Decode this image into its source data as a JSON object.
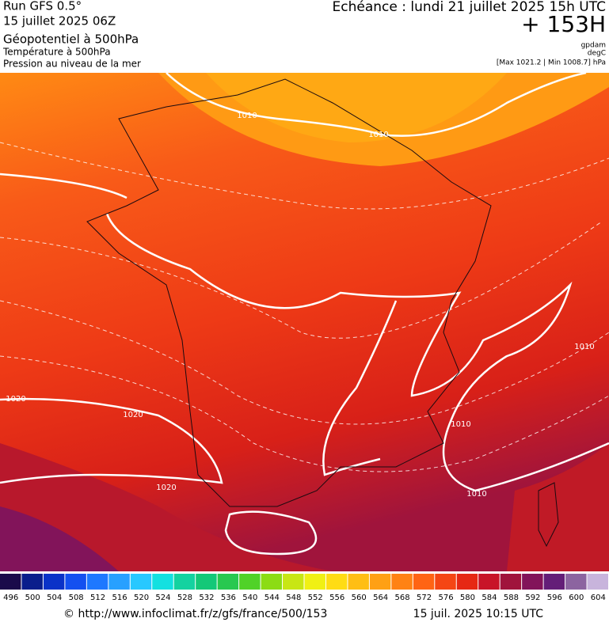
{
  "header": {
    "left": [
      "Run GFS 0.5°",
      "15 juillet 2025 06Z",
      "Géopotentiel à 500hPa",
      "Température à 500hPa",
      "Pression au niveau de la mer"
    ],
    "right": {
      "valid": "Echéance : lundi 21 juillet 2025 15h UTC",
      "lead": "+ 153H",
      "units": [
        "gpdam",
        "degC"
      ],
      "range": "[Max 1021.2 | Min 1008.7] hPa"
    }
  },
  "map": {
    "contour_labels": [
      "1010",
      "1010",
      "1020",
      "1020",
      "1020",
      "1010",
      "1010",
      "1010"
    ]
  },
  "colorbar": {
    "ticks": [
      496,
      500,
      504,
      508,
      512,
      516,
      520,
      524,
      528,
      532,
      536,
      540,
      544,
      548,
      552,
      556,
      560,
      564,
      568,
      572,
      576,
      580,
      584,
      588,
      592,
      596,
      600,
      604
    ],
    "colors": [
      "#1a0a4a",
      "#0a1e8c",
      "#0a32c8",
      "#1450f0",
      "#1e78ff",
      "#28a0ff",
      "#28c8ff",
      "#14e0e0",
      "#14d2a0",
      "#14c878",
      "#28c850",
      "#50d228",
      "#8cdc14",
      "#c8e614",
      "#f0f014",
      "#ffdc14",
      "#ffbe14",
      "#ffa014",
      "#ff8214",
      "#ff6414",
      "#f54614",
      "#e62814",
      "#c81428",
      "#a0143c",
      "#82145a",
      "#641e78",
      "#8c64a0",
      "#c8b4dc"
    ]
  },
  "footer": {
    "url": "© http://www.infoclimat.fr/z/gfs/france/500/153",
    "timestamp": "15 juil. 2025 10:15 UTC"
  }
}
